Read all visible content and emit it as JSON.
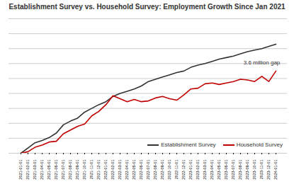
{
  "chart_data": {
    "type": "line",
    "title": "Establishment Survey vs. Household Survey: Employment Growth Since Jan 2021",
    "x": [
      "2021-01-01",
      "2021-02-01",
      "2021-03-01",
      "2021-04-01",
      "2021-05-01",
      "2021-06-01",
      "2021-07-01",
      "2021-08-01",
      "2021-09-01",
      "2021-10-01",
      "2021-11-01",
      "2021-12-01",
      "2022-01-01",
      "2022-02-01",
      "2022-03-01",
      "2022-04-01",
      "2022-05-01",
      "2022-06-01",
      "2022-07-01",
      "2022-08-01",
      "2022-09-01",
      "2022-10-01",
      "2022-11-01",
      "2022-12-01",
      "2023-01-01",
      "2023-02-01",
      "2023-03-01",
      "2023-04-01",
      "2023-05-01",
      "2023-06-01",
      "2023-07-01",
      "2023-08-01",
      "2023-09-01",
      "2023-10-01",
      "2023-11-01",
      "2023-12-01",
      "2024-01-01"
    ],
    "series": [
      {
        "name": "Establishment Survey",
        "color": "#333333",
        "values": [
          0,
          0.7,
          1.4,
          1.7,
          2.1,
          2.7,
          3.8,
          4.3,
          4.7,
          5.5,
          6.0,
          6.5,
          6.9,
          7.6,
          8.0,
          8.3,
          8.6,
          9.0,
          9.6,
          9.9,
          10.2,
          10.5,
          10.8,
          11.0,
          11.5,
          11.8,
          12.0,
          12.3,
          12.6,
          12.8,
          13.0,
          13.3,
          13.6,
          13.8,
          14.0,
          14.3,
          14.6
        ]
      },
      {
        "name": "Household Survey",
        "color": "#c00000",
        "values": [
          0,
          0.2,
          0.8,
          1.1,
          1.5,
          1.6,
          2.6,
          3.1,
          3.6,
          3.9,
          5.0,
          5.6,
          6.5,
          7.7,
          7.3,
          6.9,
          7.2,
          6.9,
          7.0,
          7.4,
          7.6,
          7.3,
          7.1,
          7.8,
          8.6,
          8.7,
          9.3,
          9.4,
          9.2,
          9.4,
          9.6,
          9.9,
          9.8,
          9.6,
          10.3,
          9.6,
          11.0
        ]
      }
    ],
    "annotations": [
      {
        "text": "3.6 million gap"
      }
    ],
    "ylim": [
      0,
      18
    ],
    "yticks": [
      0,
      2,
      4,
      6,
      8,
      10,
      12,
      14,
      16,
      18
    ],
    "grid": true,
    "tick_labels": "x",
    "legend": "lower right"
  }
}
